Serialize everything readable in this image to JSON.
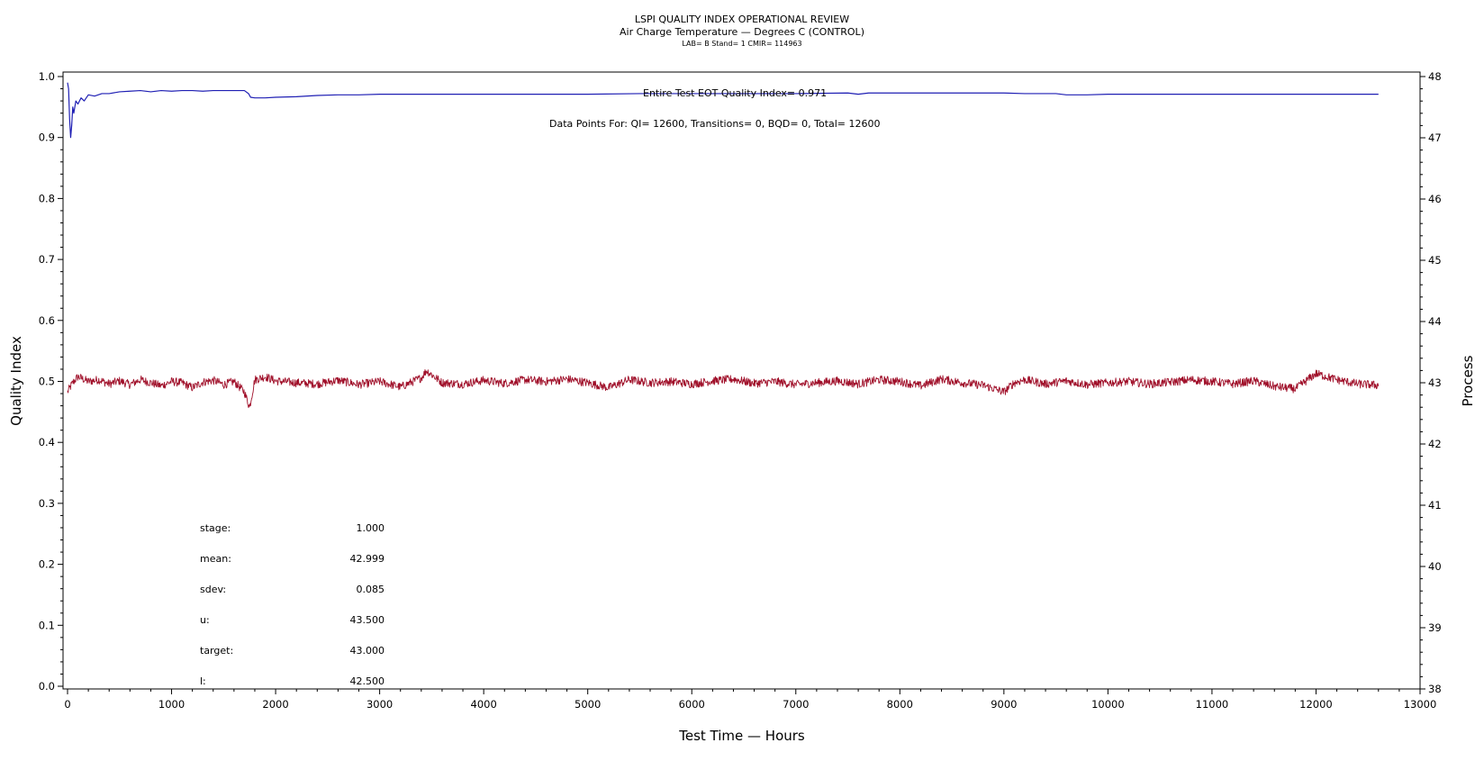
{
  "chart_data": {
    "type": "line",
    "title": "LSPI QUALITY INDEX OPERATIONAL REVIEW",
    "subtitle": "Air Charge Temperature — Degrees C (CONTROL)",
    "subsubtitle": "LAB= B Stand= 1 CMIR= 114963",
    "xlabel": "Test Time — Hours",
    "ylabel_left": "Quality Index",
    "ylabel_right": "Process",
    "xlim": [
      0,
      13000
    ],
    "ylim_left": [
      0.0,
      1.0
    ],
    "ylim_right": [
      38,
      48
    ],
    "x_ticks": [
      0,
      1000,
      2000,
      3000,
      4000,
      5000,
      6000,
      7000,
      8000,
      9000,
      10000,
      11000,
      12000,
      13000
    ],
    "y_left_ticks": [
      "0.0",
      "0.1",
      "0.2",
      "0.3",
      "0.4",
      "0.5",
      "0.6",
      "0.7",
      "0.8",
      "0.9",
      "1.0"
    ],
    "y_right_ticks": [
      "38",
      "39",
      "40",
      "41",
      "42",
      "43",
      "44",
      "45",
      "46",
      "47",
      "48"
    ],
    "grid": false,
    "annotations": {
      "eot_quality_index": "Entire Test EOT Quality Index=   0.971",
      "data_points": "Data Points For: QI= 12600, Transitions=     0, BQD=     0, Total= 12600"
    },
    "stats": [
      {
        "label": "stage:",
        "value": "1.000"
      },
      {
        "label": "mean:",
        "value": "42.999"
      },
      {
        "label": "sdev:",
        "value": "0.085"
      },
      {
        "label": "u:",
        "value": "43.500"
      },
      {
        "label": "target:",
        "value": "43.000"
      },
      {
        "label": "l:",
        "value": "42.500"
      }
    ],
    "series": [
      {
        "axis": "left",
        "color": "#1f1fb4",
        "x": [
          0,
          10,
          20,
          30,
          40,
          50,
          60,
          80,
          100,
          130,
          160,
          200,
          260,
          330,
          400,
          500,
          600,
          700,
          800,
          900,
          1000,
          1100,
          1200,
          1300,
          1400,
          1500,
          1600,
          1700,
          1740,
          1760,
          1800,
          1900,
          2000,
          2200,
          2400,
          2600,
          2800,
          3000,
          3500,
          4000,
          4500,
          5000,
          5500,
          6000,
          6500,
          7000,
          7500,
          7600,
          7700,
          8000,
          8500,
          9000,
          9200,
          9500,
          9600,
          9800,
          10000,
          10500,
          11000,
          11500,
          12000,
          12600
        ],
        "y": [
          0.99,
          0.98,
          0.93,
          0.9,
          0.92,
          0.95,
          0.94,
          0.96,
          0.955,
          0.965,
          0.96,
          0.97,
          0.968,
          0.972,
          0.972,
          0.975,
          0.976,
          0.977,
          0.975,
          0.977,
          0.976,
          0.977,
          0.977,
          0.976,
          0.977,
          0.977,
          0.977,
          0.977,
          0.972,
          0.966,
          0.965,
          0.965,
          0.966,
          0.967,
          0.969,
          0.97,
          0.97,
          0.971,
          0.971,
          0.971,
          0.971,
          0.971,
          0.972,
          0.972,
          0.972,
          0.972,
          0.973,
          0.971,
          0.973,
          0.973,
          0.973,
          0.973,
          0.972,
          0.972,
          0.97,
          0.97,
          0.971,
          0.971,
          0.971,
          0.971,
          0.971,
          0.971
        ]
      },
      {
        "axis": "right",
        "color": "#a0102a",
        "x": [
          0,
          50,
          100,
          200,
          300,
          400,
          500,
          600,
          700,
          800,
          900,
          1000,
          1100,
          1200,
          1300,
          1400,
          1500,
          1600,
          1700,
          1750,
          1800,
          1900,
          2000,
          2200,
          2400,
          2600,
          2800,
          3000,
          3200,
          3400,
          3450,
          3600,
          3800,
          4000,
          4200,
          4400,
          4600,
          4800,
          5000,
          5200,
          5400,
          5600,
          5800,
          6000,
          6200,
          6400,
          6600,
          6800,
          7000,
          7200,
          7400,
          7600,
          7800,
          8000,
          8200,
          8400,
          8600,
          8800,
          9000,
          9100,
          9200,
          9400,
          9600,
          9800,
          10000,
          10200,
          10400,
          10600,
          10800,
          11000,
          11200,
          11400,
          11600,
          11800,
          12000,
          12200,
          12400,
          12600
        ],
        "y": [
          42.85,
          43.0,
          43.1,
          43.02,
          43.05,
          42.98,
          43.03,
          42.97,
          43.05,
          43.0,
          42.95,
          43.02,
          43.0,
          42.92,
          43.01,
          43.04,
          42.97,
          43.02,
          42.85,
          42.6,
          43.05,
          43.1,
          43.03,
          43.0,
          42.98,
          43.04,
          42.97,
          43.02,
          42.93,
          43.08,
          43.2,
          43.0,
          42.98,
          43.04,
          42.99,
          43.05,
          43.02,
          43.06,
          43.0,
          42.92,
          43.05,
          43.0,
          43.02,
          42.98,
          43.03,
          43.06,
          42.99,
          43.02,
          42.97,
          43.0,
          43.03,
          42.98,
          43.05,
          43.02,
          42.95,
          43.06,
          43.0,
          42.96,
          42.85,
          43.0,
          43.05,
          42.98,
          43.03,
          42.97,
          43.0,
          43.02,
          42.98,
          43.01,
          43.05,
          43.02,
          42.98,
          43.03,
          42.94,
          42.9,
          43.15,
          43.05,
          42.98,
          42.96
        ]
      }
    ]
  }
}
